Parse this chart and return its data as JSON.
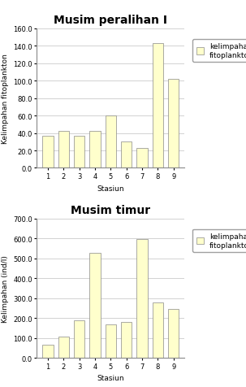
{
  "title1": "Musim peralihan I",
  "title2": "Musim timur",
  "stations": [
    1,
    2,
    3,
    4,
    5,
    6,
    7,
    8,
    9
  ],
  "values1": [
    37,
    42,
    37,
    42,
    60,
    30,
    23,
    143,
    102
  ],
  "values2": [
    65,
    107,
    188,
    527,
    168,
    180,
    595,
    280,
    247
  ],
  "bar_color": "#ffffcc",
  "bar_edgecolor": "#888888",
  "ylabel1": "Kelimpahan fitoplankton",
  "ylabel2": "Kelimpahan (ind/l)",
  "xlabel": "Stasiun",
  "ylim1": [
    0,
    160.0
  ],
  "ylim2": [
    0,
    700.0
  ],
  "yticks1": [
    0.0,
    20.0,
    40.0,
    60.0,
    80.0,
    100.0,
    120.0,
    140.0,
    160.0
  ],
  "yticks2": [
    0.0,
    100.0,
    200.0,
    300.0,
    400.0,
    500.0,
    600.0,
    700.0
  ],
  "legend_label": "kelimpahan\nfitoplankton",
  "bg_color": "#ffffff",
  "grid_color": "#c0c0c0",
  "title_fontsize": 10,
  "label_fontsize": 6.5,
  "tick_fontsize": 6,
  "legend_fontsize": 6.5
}
